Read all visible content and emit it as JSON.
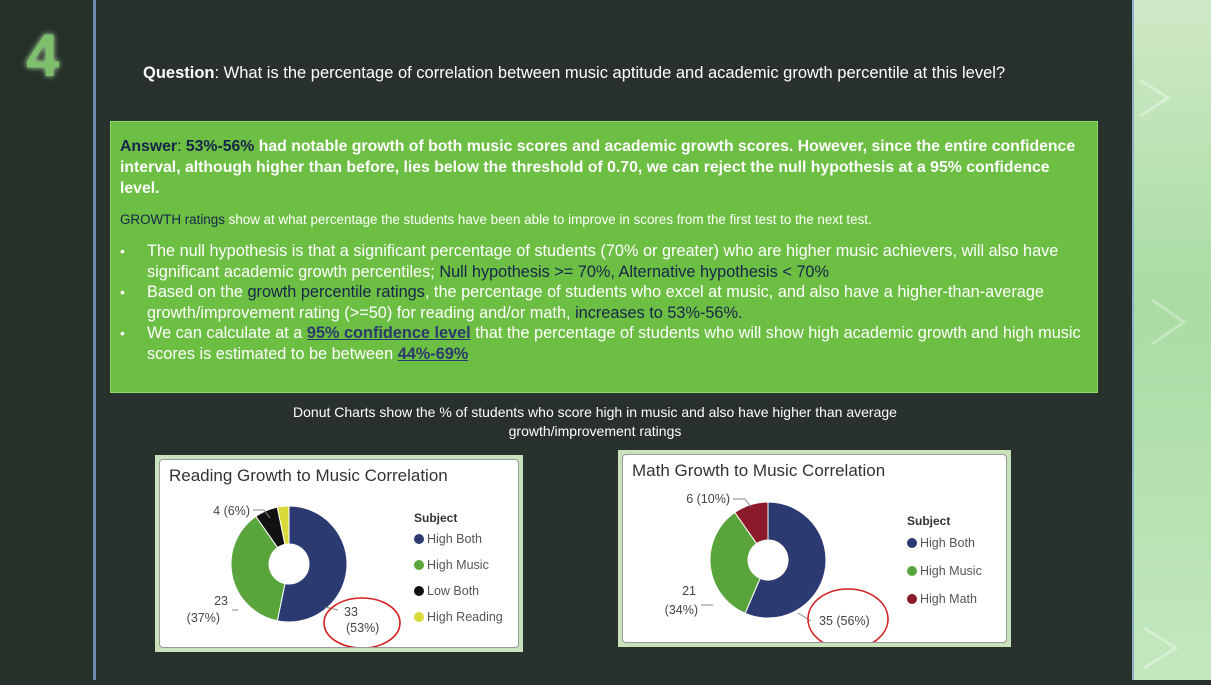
{
  "slide_number": "4",
  "question": {
    "label": "Question",
    "text": ": What is the percentage of correlation between music aptitude and academic growth percentile at this level?"
  },
  "answer": {
    "label": "Answer",
    "colon": ": ",
    "highlight": "53%-56%",
    "text": " had notable growth of both music scores and academic growth scores. However, since the entire confidence interval, although higher than before, lies below the threshold of 0.70, we can reject the null hypothesis at a 95% confidence level."
  },
  "growth_note": {
    "highlight": "GROWTH ratings",
    "text": " show at what percentage the students have been able to improve in scores from the first test to the next test."
  },
  "bullets": [
    {
      "pre": "The null hypothesis is that a significant percentage of students (70% or greater) who are higher music achievers, will also have significant academic growth percentiles; ",
      "highlight": "Null hypothesis >= 70%, Alternative hypothesis < 70%",
      "post": ""
    },
    {
      "pre": "Based on the ",
      "highlight": "growth percentile ratings",
      "mid": ", the percentage of students who excel at music, and also have a higher-than-average growth/improvement rating (>=50) for reading and/or math, ",
      "highlight2": "increases to 53%-56%."
    },
    {
      "pre": "We can calculate at a ",
      "link": "95% confidence level",
      "mid": " that the percentage of students who will show high academic growth and high music scores is estimated to be between ",
      "link2": "44%-69%"
    }
  ],
  "caption": "Donut Charts show the % of students who score high in music and also have higher than average growth/improvement ratings",
  "chart_data": [
    {
      "type": "pie",
      "title": "Reading Growth to Music Correlation",
      "legend_title": "Subject",
      "legend_position": "right",
      "categories": [
        "High Both",
        "High Music",
        "Low Both",
        "High Reading"
      ],
      "legend_labels": [
        "High Both",
        "High Music",
        "Low Both",
        "High Reading"
      ],
      "values": [
        33,
        23,
        4,
        2
      ],
      "colors": [
        "#2c3a72",
        "#59a53c",
        "#111111",
        "#d9d93a"
      ],
      "data_labels": [
        [
          "33",
          "(53%)"
        ],
        [
          "23",
          "(37%)"
        ],
        [
          "4 (6%)"
        ],
        []
      ]
    },
    {
      "type": "pie",
      "title": "Math Growth to Music Correlation",
      "legend_title": "Subject",
      "legend_position": "right",
      "categories": [
        "High Both",
        "High Music",
        "High Math"
      ],
      "legend_labels": [
        "High Both",
        "High Music",
        "High Math"
      ],
      "values": [
        35,
        21,
        6
      ],
      "colors": [
        "#2c3a72",
        "#59a53c",
        "#8b1a2a"
      ],
      "data_labels": [
        [
          "35 (56%)"
        ],
        [
          "21",
          "(34%)"
        ],
        [
          "6 (10%)"
        ]
      ]
    }
  ]
}
